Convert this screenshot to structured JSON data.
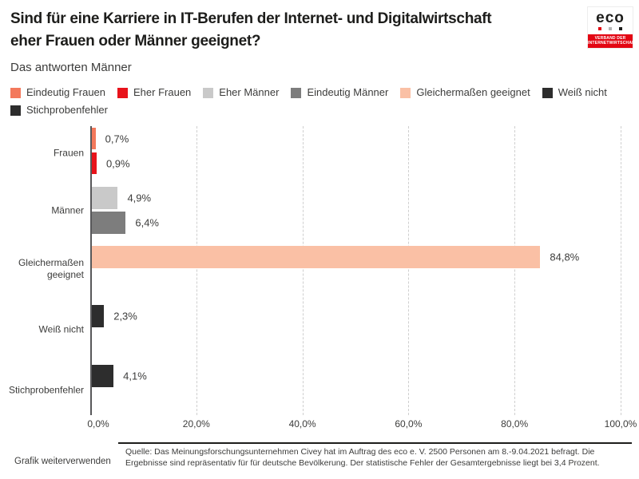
{
  "header": {
    "title_line1": "Sind für eine Karriere in IT-Berufen der Internet- und Digitalwirtschaft",
    "title_line2": "eher Frauen oder Männer geeignet?",
    "subtitle": "Das antworten Männer"
  },
  "logo": {
    "text": "eco",
    "tagline_line1": "VERBAND DER",
    "tagline_line2": "INTERNETWIRTSCHAFT",
    "dot_colors": [
      "#e30613",
      "#b5b5b5",
      "#1d1d1b"
    ],
    "strip_color": "#e30613"
  },
  "legend": {
    "items": [
      {
        "label": "Eindeutig Frauen",
        "color": "#f3795c"
      },
      {
        "label": "Eher Frauen",
        "color": "#e8131b"
      },
      {
        "label": "Eher Männer",
        "color": "#c9c9c9"
      },
      {
        "label": "Eindeutig Männer",
        "color": "#7d7d7d"
      },
      {
        "label": "Gleichermaßen geeignet",
        "color": "#fac0a5"
      },
      {
        "label": "Weiß nicht",
        "color": "#2d2d2d"
      },
      {
        "label": "Stichprobenfehler",
        "color": "#2d2d2d"
      }
    ]
  },
  "chart_data": {
    "type": "bar",
    "orientation": "horizontal",
    "title": "Sind für eine Karriere in IT-Berufen der Internet- und Digitalwirtschaft eher Frauen oder Männer geeignet?",
    "subtitle": "Das antworten Männer",
    "xlim": [
      0,
      100
    ],
    "x_ticks": [
      "0,0%",
      "20,0%",
      "40,0%",
      "60,0%",
      "80,0%",
      "100,0%"
    ],
    "grid": "vertical-dashed",
    "legend_position": "top",
    "series_colors": {
      "Eindeutig Frauen": "#f3795c",
      "Eher Frauen": "#e8131b",
      "Eher Männer": "#c9c9c9",
      "Eindeutig Männer": "#7d7d7d",
      "Gleichermaßen geeignet": "#fac0a5",
      "Weiß nicht": "#2d2d2d",
      "Stichprobenfehler": "#2d2d2d"
    },
    "groups": [
      {
        "category": "Frauen",
        "bars": [
          {
            "series": "Eindeutig Frauen",
            "value": 0.7,
            "label": "0,7%"
          },
          {
            "series": "Eher Frauen",
            "value": 0.9,
            "label": "0,9%"
          }
        ]
      },
      {
        "category": "Männer",
        "bars": [
          {
            "series": "Eher Männer",
            "value": 4.9,
            "label": "4,9%"
          },
          {
            "series": "Eindeutig Männer",
            "value": 6.4,
            "label": "6,4%"
          }
        ]
      },
      {
        "category": "Gleichermaßen geeignet",
        "bars": [
          {
            "series": "Gleichermaßen geeignet",
            "value": 84.8,
            "label": "84,8%"
          }
        ]
      },
      {
        "category": "Weiß nicht",
        "bars": [
          {
            "series": "Weiß nicht",
            "value": 2.3,
            "label": "2,3%"
          }
        ]
      },
      {
        "category": "Stichprobenfehler",
        "bars": [
          {
            "series": "Stichprobenfehler",
            "value": 4.1,
            "label": "4,1%"
          }
        ]
      }
    ]
  },
  "footer": {
    "source": "Quelle: Das Meinungsforschungsunternehmen Civey hat im Auftrag des eco e. V. 2500 Personen am 8.-9.04.2021 befragt. Die Ergebnisse sind repräsentativ für für deutsche Bevölkerung. Der statistische Fehler der Gesamtergebnisse liegt bei 3,4 Prozent.",
    "reuse_label": "Grafik weiterverwenden"
  }
}
